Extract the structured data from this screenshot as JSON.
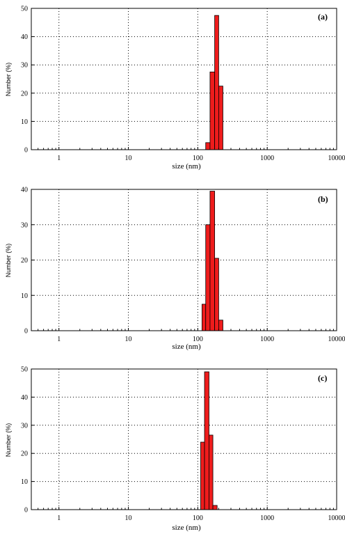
{
  "chart_data": [
    {
      "type": "bar",
      "panel_label": "(a)",
      "xlabel": "size (nm)",
      "ylabel": "Number (%)",
      "xscale": "log",
      "xlim": [
        0.4,
        10000
      ],
      "ylim": [
        0,
        50
      ],
      "x_ticks": [
        "1",
        "10",
        "100",
        "1000",
        "10000"
      ],
      "y_ticks": [
        "0",
        "10",
        "20",
        "30",
        "40",
        "50"
      ],
      "grid": true,
      "bins": [
        {
          "from": 130,
          "to": 150,
          "value": 2.5
        },
        {
          "from": 150,
          "to": 175,
          "value": 27.5
        },
        {
          "from": 175,
          "to": 200,
          "value": 47.5
        },
        {
          "from": 200,
          "to": 230,
          "value": 22.5
        }
      ]
    },
    {
      "type": "bar",
      "panel_label": "(b)",
      "xlabel": "size (nm)",
      "ylabel": "Number (%)",
      "xscale": "log",
      "xlim": [
        0.4,
        10000
      ],
      "ylim": [
        0,
        40
      ],
      "x_ticks": [
        "1",
        "10",
        "100",
        "1000",
        "10000"
      ],
      "y_ticks": [
        "0",
        "10",
        "20",
        "30",
        "40"
      ],
      "grid": true,
      "bins": [
        {
          "from": 115,
          "to": 130,
          "value": 7.5
        },
        {
          "from": 130,
          "to": 150,
          "value": 30
        },
        {
          "from": 150,
          "to": 175,
          "value": 39.5
        },
        {
          "from": 175,
          "to": 200,
          "value": 20.5
        },
        {
          "from": 200,
          "to": 230,
          "value": 3
        }
      ]
    },
    {
      "type": "bar",
      "panel_label": "(c)",
      "xlabel": "size (nm)",
      "ylabel": "Number (%)",
      "xscale": "log",
      "xlim": [
        0.4,
        10000
      ],
      "ylim": [
        0,
        50
      ],
      "x_ticks": [
        "1",
        "10",
        "100",
        "1000",
        "10000"
      ],
      "y_ticks": [
        "0",
        "10",
        "20",
        "30",
        "40",
        "50"
      ],
      "grid": true,
      "bins": [
        {
          "from": 110,
          "to": 125,
          "value": 24
        },
        {
          "from": 125,
          "to": 145,
          "value": 49
        },
        {
          "from": 145,
          "to": 165,
          "value": 26.5
        },
        {
          "from": 165,
          "to": 190,
          "value": 1.5
        }
      ]
    }
  ],
  "colors": {
    "bar_fill": "#ee1c1c",
    "bar_edge": "#000000",
    "grid": "#000000"
  }
}
